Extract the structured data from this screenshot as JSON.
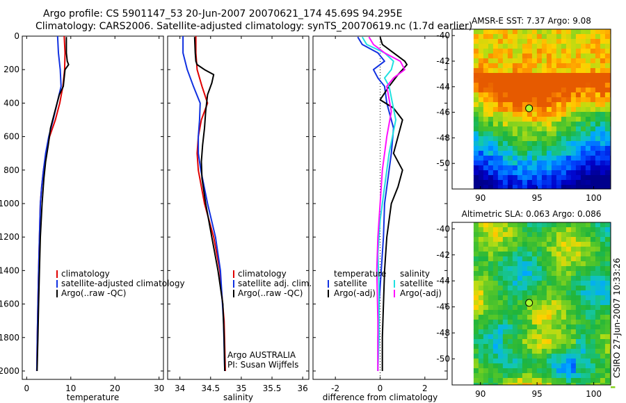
{
  "header": {
    "title_line1": "Argo profile: CS 5901147_53 20-Jun-2007 20070621_174 45.69S 94.295E",
    "title_line2": "Climatology: CARS2006. Satellite-adjusted climatology: synTS_20070619.nc (1.7d earlier)"
  },
  "colors": {
    "red": "#e00000",
    "blue": "#1030e0",
    "black": "#000000",
    "cyan": "#20e0e0",
    "magenta": "#ff10ff"
  },
  "chart_data": [
    {
      "type": "line",
      "xlabel": "temperature",
      "xlim": [
        -1,
        31
      ],
      "ylim": [
        2050,
        0
      ],
      "xticks": [
        "0",
        "10",
        "20",
        "30"
      ],
      "yticks": [
        "0",
        "200",
        "400",
        "600",
        "800",
        "1000",
        "1200",
        "1400",
        "1600",
        "1800",
        "2000"
      ],
      "legend": [
        "climatology",
        "satellite-adjusted climatology",
        "Argo(..raw -QC)"
      ],
      "series": [
        {
          "name": "climatology",
          "color": "red",
          "x": [
            8.5,
            8.7,
            8.6,
            8.2,
            7.5,
            6.5,
            5.2,
            4.4,
            3.8,
            3.4,
            3.1,
            2.9,
            2.7,
            2.55,
            2.4,
            2.3
          ],
          "y": [
            0,
            100,
            200,
            300,
            400,
            500,
            600,
            700,
            800,
            900,
            1000,
            1200,
            1400,
            1600,
            1800,
            2000
          ]
        },
        {
          "name": "satellite-adjusted climatology",
          "color": "blue",
          "x": [
            7.0,
            7.2,
            7.6,
            7.8,
            6.9,
            6.0,
            5.0,
            4.3,
            3.8,
            3.4,
            3.1,
            2.9,
            2.7,
            2.55,
            2.4,
            2.3
          ],
          "y": [
            0,
            100,
            200,
            300,
            400,
            500,
            600,
            700,
            800,
            900,
            1000,
            1200,
            1400,
            1600,
            1800,
            2000
          ]
        },
        {
          "name": "Argo(..raw -QC)",
          "color": "black",
          "x": [
            9.0,
            9.0,
            9.2,
            9.5,
            8.7,
            8.3,
            7.4,
            6.4,
            5.4,
            4.9,
            4.3,
            3.9,
            3.5,
            3.1,
            2.9,
            2.7,
            2.55,
            2.45,
            2.35
          ],
          "y": [
            5,
            100,
            150,
            170,
            200,
            300,
            350,
            450,
            550,
            650,
            750,
            850,
            1000,
            1200,
            1400,
            1600,
            1800,
            1900,
            2000
          ]
        }
      ],
      "annotations": []
    },
    {
      "type": "line",
      "xlabel": "salinity",
      "xlim": [
        33.8,
        36.1
      ],
      "ylim": [
        2050,
        0
      ],
      "xticks": [
        "34",
        "34.5",
        "35",
        "35.5",
        "36"
      ],
      "yticks": [],
      "legend": [
        "climatology",
        "satellite adj. clim.",
        "Argo(..raw -QC)"
      ],
      "series": [
        {
          "name": "climatology",
          "color": "red",
          "x": [
            34.26,
            34.26,
            34.28,
            34.36,
            34.45,
            34.35,
            34.3,
            34.28,
            34.3,
            34.4,
            34.55,
            34.65,
            34.72,
            34.74
          ],
          "y": [
            0,
            100,
            200,
            300,
            400,
            500,
            600,
            700,
            800,
            1000,
            1200,
            1400,
            1700,
            2000
          ]
        },
        {
          "name": "satellite adj. clim.",
          "color": "blue",
          "x": [
            34.05,
            34.05,
            34.12,
            34.22,
            34.33,
            34.32,
            34.3,
            34.3,
            34.34,
            34.45,
            34.58,
            34.66,
            34.71,
            34.73
          ],
          "y": [
            0,
            100,
            200,
            300,
            400,
            500,
            600,
            700,
            800,
            1000,
            1200,
            1400,
            1700,
            2000
          ]
        },
        {
          "name": "Argo(..raw -QC)",
          "color": "black",
          "x": [
            34.24,
            34.25,
            34.26,
            34.28,
            34.4,
            34.55,
            34.52,
            34.45,
            34.42,
            34.4,
            34.37,
            34.35,
            34.36,
            34.42,
            34.52,
            34.62,
            34.7,
            34.72,
            34.73
          ],
          "y": [
            5,
            100,
            150,
            170,
            200,
            230,
            280,
            350,
            450,
            550,
            650,
            750,
            850,
            1000,
            1200,
            1400,
            1600,
            1800,
            2000
          ]
        }
      ],
      "annotations": [
        "Argo AUSTRALIA",
        "PI: Susan Wijffels"
      ]
    },
    {
      "type": "line",
      "xlabel": "difference from climatology",
      "xlim": [
        -3,
        3
      ],
      "ylim": [
        2050,
        0
      ],
      "xticks": [
        "-2",
        "0",
        "2"
      ],
      "yticks": [],
      "legend_groups": [
        {
          "heading": "temperature",
          "items": [
            "satellite",
            "Argo(-adj)"
          ]
        },
        {
          "heading": "salinity",
          "items": [
            "satellite",
            "Argo(-adj)"
          ]
        }
      ],
      "series": [
        {
          "name": "temperature satellite",
          "color": "blue",
          "x": [
            -1.0,
            -0.8,
            -0.1,
            0.2,
            -0.3,
            -0.1,
            0.2,
            0.3,
            0.6,
            0.5,
            0.35,
            0.2,
            0.15,
            0.05,
            -0.05,
            -0.1,
            -0.1
          ],
          "y": [
            5,
            50,
            100,
            150,
            200,
            250,
            300,
            400,
            550,
            700,
            850,
            1000,
            1200,
            1400,
            1600,
            1800,
            2000
          ]
        },
        {
          "name": "temperature Argo(-adj)",
          "color": "black",
          "x": [
            0.0,
            0.1,
            0.6,
            1.1,
            1.2,
            0.8,
            0.4,
            0.0,
            0.6,
            1.0,
            0.8,
            0.6,
            1.0,
            0.8,
            0.5,
            0.3,
            0.2,
            0.15,
            0.1,
            0.1
          ],
          "y": [
            5,
            50,
            100,
            150,
            170,
            230,
            300,
            380,
            430,
            500,
            600,
            700,
            800,
            900,
            1000,
            1200,
            1400,
            1600,
            1800,
            2000
          ]
        },
        {
          "name": "salinity satellite",
          "color": "cyan",
          "x": [
            -0.8,
            -0.6,
            0.2,
            0.6,
            0.5,
            0.2,
            0.4,
            0.7,
            0.4,
            0.2,
            0.0,
            -0.1,
            -0.05,
            -0.05,
            -0.1
          ],
          "y": [
            5,
            50,
            100,
            150,
            200,
            250,
            300,
            500,
            700,
            900,
            1100,
            1300,
            1500,
            1800,
            2000
          ]
        },
        {
          "name": "salinity Argo(-adj)",
          "color": "magenta",
          "x": [
            -0.5,
            -0.3,
            0.2,
            0.9,
            1.1,
            0.6,
            0.3,
            0.5,
            0.3,
            0.1,
            0.0,
            -0.1,
            -0.15,
            -0.1,
            -0.1
          ],
          "y": [
            5,
            50,
            100,
            150,
            200,
            250,
            300,
            450,
            600,
            800,
            1000,
            1200,
            1400,
            1700,
            2000
          ]
        }
      ],
      "annotations": []
    },
    {
      "type": "heatmap",
      "title": "AMSR-E SST: 7.37 Argo: 9.08",
      "xlim": [
        87.5,
        101.5
      ],
      "ylim": [
        -52,
        -39.5
      ],
      "xticks": [
        "90",
        "95",
        "100"
      ],
      "yticks": [
        "-40",
        "-42",
        "-44",
        "-46",
        "-48",
        "-50"
      ],
      "marker": {
        "lon": 94.295,
        "lat": -45.69
      }
    },
    {
      "type": "heatmap",
      "title": "Altimetric SLA: 0.063 Argo: 0.086",
      "xlim": [
        87.5,
        101.5
      ],
      "ylim": [
        -52,
        -39.5
      ],
      "xticks": [
        "90",
        "95",
        "100"
      ],
      "yticks": [
        "-40",
        "-42",
        "-44",
        "-46",
        "-48",
        "-50"
      ],
      "marker": {
        "lon": 94.295,
        "lat": -45.69
      }
    }
  ],
  "side_stamp": "CSIRO 27-Jun-2007 10:33:26"
}
